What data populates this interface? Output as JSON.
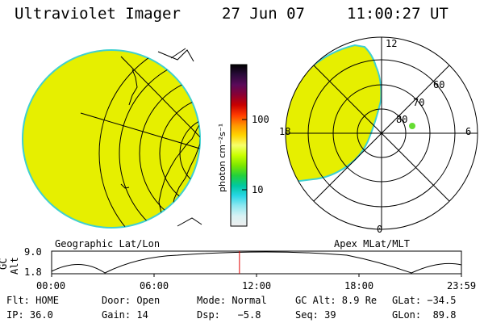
{
  "header": {
    "instrument": "Ultraviolet Imager",
    "date": "27 Jun 07",
    "time": "11:00:27 UT"
  },
  "colorbar": {
    "unit_label": "photon cm⁻²s⁻¹",
    "tick_100": "100",
    "tick_10": "10",
    "colors": [
      "#000000",
      "#2a0a3a",
      "#5a0a5a",
      "#8a0033",
      "#c80000",
      "#ff3b00",
      "#ff9400",
      "#ffd400",
      "#f7ff6a",
      "#c8ff00",
      "#7ce600",
      "#22d03c",
      "#00c8a0",
      "#29d6e6",
      "#8fe8f0",
      "#d8f2f4",
      "#eeeeee"
    ]
  },
  "left_panel": {
    "caption": "Geographic Lat/Lon"
  },
  "right_panel": {
    "caption": "Apex MLat/MLT",
    "mlt_top": "12",
    "mlt_bottom": "0",
    "mlt_left": "18",
    "mlt_right": "6",
    "lat_60": "60",
    "lat_70": "70",
    "lat_80": "80"
  },
  "timeline": {
    "axis_label_line1": "GC",
    "axis_label_line2": "Alt",
    "ytick_top": "9.0",
    "ytick_bottom": "1.8",
    "xticks": [
      "00:00",
      "06:00",
      "12:00",
      "18:00",
      "23:59"
    ],
    "current_time_fraction": 0.4584,
    "marker_color": "#e00000"
  },
  "info": {
    "flt": "Flt: HOME",
    "door": "Door: Open",
    "mode": "Mode: Normal",
    "gc_alt": "GC Alt: 8.9 Re",
    "glat": "GLat: −34.5",
    "ip": "IP: 36.0",
    "gain": "Gain: 14",
    "dsp": "Dsp:   −5.8",
    "seq": "Seq: 39",
    "glon": "GLon:  89.8"
  },
  "style": {
    "aurora_fill": "#e6ef00",
    "aurora_edge": "#3fd0d0",
    "dot_color": "#66dd33"
  }
}
